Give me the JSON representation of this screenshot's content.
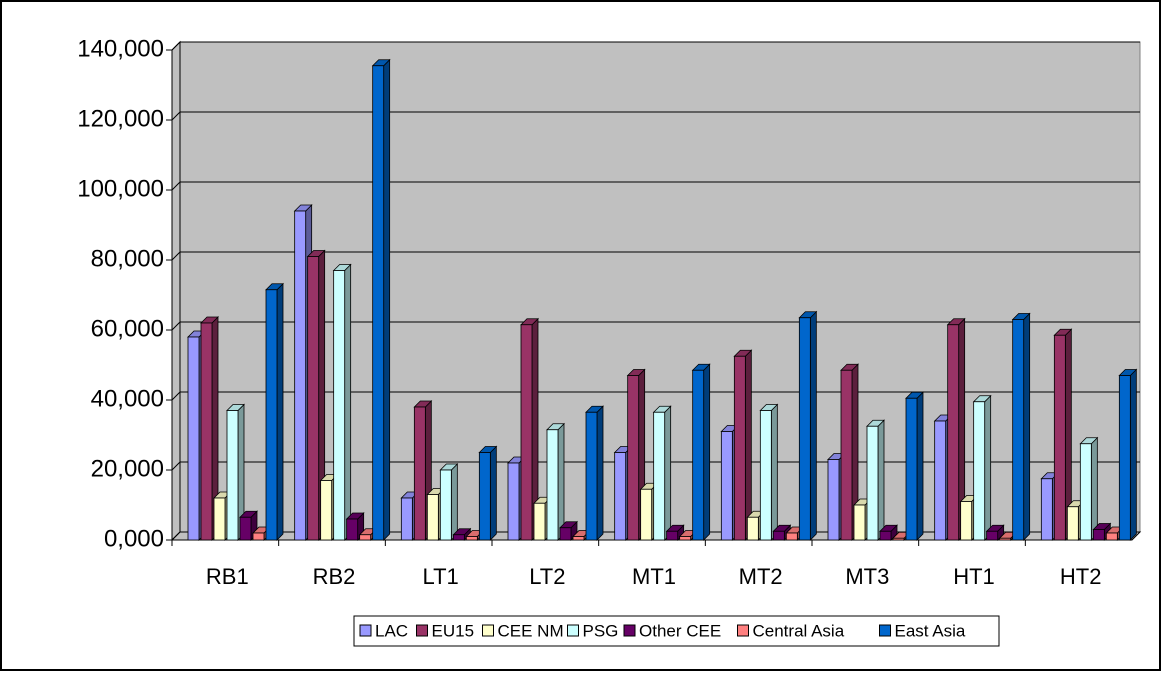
{
  "chart_data": {
    "type": "bar3d",
    "categories": [
      "RB1",
      "RB2",
      "LT1",
      "LT2",
      "MT1",
      "MT2",
      "MT3",
      "HT1",
      "HT2"
    ],
    "series": [
      {
        "name": "LAC",
        "color": "#9999ff",
        "values": [
          58000,
          94000,
          12000,
          22000,
          25000,
          31000,
          23000,
          34000,
          17500
        ]
      },
      {
        "name": "EU15",
        "color": "#993366",
        "values": [
          62000,
          81000,
          38000,
          61500,
          47000,
          52500,
          48500,
          61500,
          58500
        ]
      },
      {
        "name": "CEE NM",
        "color": "#ffffcc",
        "values": [
          12000,
          17000,
          13000,
          10500,
          14500,
          6500,
          10000,
          11000,
          9500
        ]
      },
      {
        "name": "PSG",
        "color": "#ccffff",
        "values": [
          37000,
          77000,
          20000,
          31500,
          36500,
          37000,
          32500,
          39500,
          27500
        ]
      },
      {
        "name": "Other CEE",
        "color": "#660066",
        "values": [
          6500,
          6000,
          1500,
          3500,
          2500,
          2500,
          2500,
          2500,
          3000
        ]
      },
      {
        "name": "Central Asia",
        "color": "#ff8080",
        "values": [
          2000,
          1500,
          1000,
          1000,
          1000,
          2000,
          500,
          500,
          2000
        ]
      },
      {
        "name": "East Asia",
        "color": "#0066cc",
        "values": [
          71500,
          135500,
          25000,
          36500,
          48500,
          63500,
          40500,
          63000,
          47000
        ]
      }
    ],
    "ylim": [
      0,
      140000
    ],
    "yticks": [
      {
        "value": 0,
        "label": "0,000"
      },
      {
        "value": 20000,
        "label": "20,000"
      },
      {
        "value": 40000,
        "label": "40,000"
      },
      {
        "value": 60000,
        "label": "60,000"
      },
      {
        "value": 80000,
        "label": "80,000"
      },
      {
        "value": 100000,
        "label": "100,000"
      },
      {
        "value": 120000,
        "label": "120,000"
      },
      {
        "value": 140000,
        "label": "140,000"
      }
    ],
    "grid": true,
    "legend": "bottom"
  }
}
